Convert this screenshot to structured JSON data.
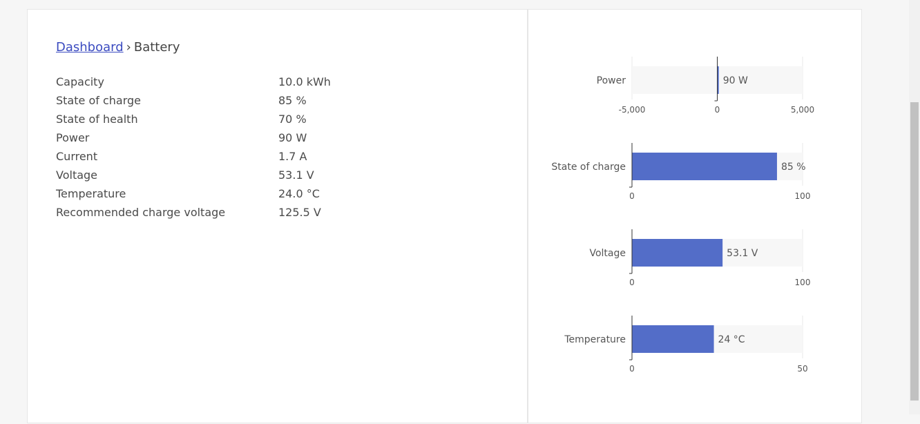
{
  "breadcrumb": {
    "root": "Dashboard",
    "separator": "›",
    "current": "Battery"
  },
  "properties": [
    {
      "label": "Capacity",
      "value": "10.0 kWh"
    },
    {
      "label": "State of charge",
      "value": "85 %"
    },
    {
      "label": "State of health",
      "value": "70 %"
    },
    {
      "label": "Power",
      "value": "90 W"
    },
    {
      "label": "Current",
      "value": "1.7 A"
    },
    {
      "label": "Voltage",
      "value": "53.1 V"
    },
    {
      "label": "Temperature",
      "value": "24.0 °C"
    },
    {
      "label": "Recommended charge voltage",
      "value": "125.5 V"
    }
  ],
  "colors": {
    "bar": "#536dc8",
    "track": "#f7f7f7",
    "link": "#3b4bc0"
  },
  "chart_data": [
    {
      "type": "bar",
      "category": "Power",
      "value": 90,
      "value_label": "90 W",
      "xlim": [
        -5000,
        5000
      ],
      "ticks": [
        "-5,000",
        "0",
        "5,000"
      ]
    },
    {
      "type": "bar",
      "category": "State of charge",
      "value": 85,
      "value_label": "85 %",
      "xlim": [
        0,
        100
      ],
      "ticks": [
        "0",
        "100"
      ]
    },
    {
      "type": "bar",
      "category": "Voltage",
      "value": 53.1,
      "value_label": "53.1 V",
      "xlim": [
        0,
        100
      ],
      "ticks": [
        "0",
        "100"
      ]
    },
    {
      "type": "bar",
      "category": "Temperature",
      "value": 24,
      "value_label": "24 °C",
      "xlim": [
        0,
        50
      ],
      "ticks": [
        "0",
        "50"
      ]
    }
  ]
}
